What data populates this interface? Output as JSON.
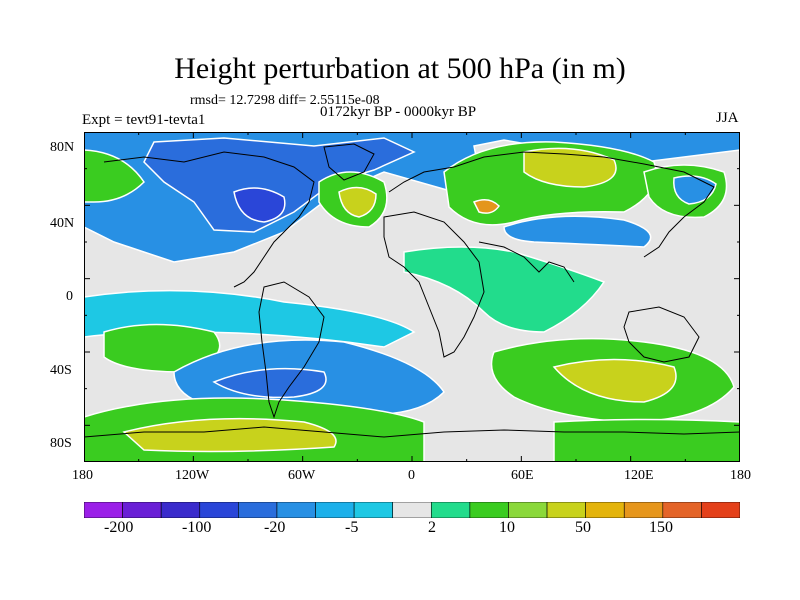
{
  "title": "Height perturbation at 500 hPa (in m)",
  "stats": "rmsd= 12.7298 diff= 2.55115e-08",
  "period": "0172kyr BP - 0000kyr BP",
  "experiment": "Expt = tevt91-tevta1",
  "season": "JJA",
  "axes": {
    "x_ticks": [
      "180",
      "120W",
      "60W",
      "0",
      "60E",
      "120E",
      "180"
    ],
    "y_ticks": [
      "80N",
      "40N",
      "0",
      "40S",
      "80S"
    ]
  },
  "colorbar": {
    "labels": [
      "-200",
      "-100",
      "-20",
      "-5",
      "2",
      "10",
      "50",
      "150"
    ],
    "colors": [
      "#9b1fe8",
      "#6a1fd6",
      "#3a2bcc",
      "#2a46d8",
      "#2a6ddc",
      "#2890e4",
      "#1cb0ea",
      "#1ec8e4",
      "#e6e6e6",
      "#22dc8c",
      "#3acc20",
      "#8ad83a",
      "#c8d21c",
      "#e4b40c",
      "#e6961c",
      "#e46428",
      "#e4401a"
    ]
  },
  "map_colors": {
    "neutral": "#e6e6e6",
    "light_blue": "#1ec8e4",
    "mid_blue": "#2890e4",
    "blue": "#2a6ddc",
    "deep_blue": "#2a46d8",
    "teal": "#22dc8c",
    "green": "#3acc20",
    "yellow_green": "#c8d21c",
    "orange": "#e4961c",
    "coast": "#000000",
    "contour_zero": "#ffffff"
  }
}
